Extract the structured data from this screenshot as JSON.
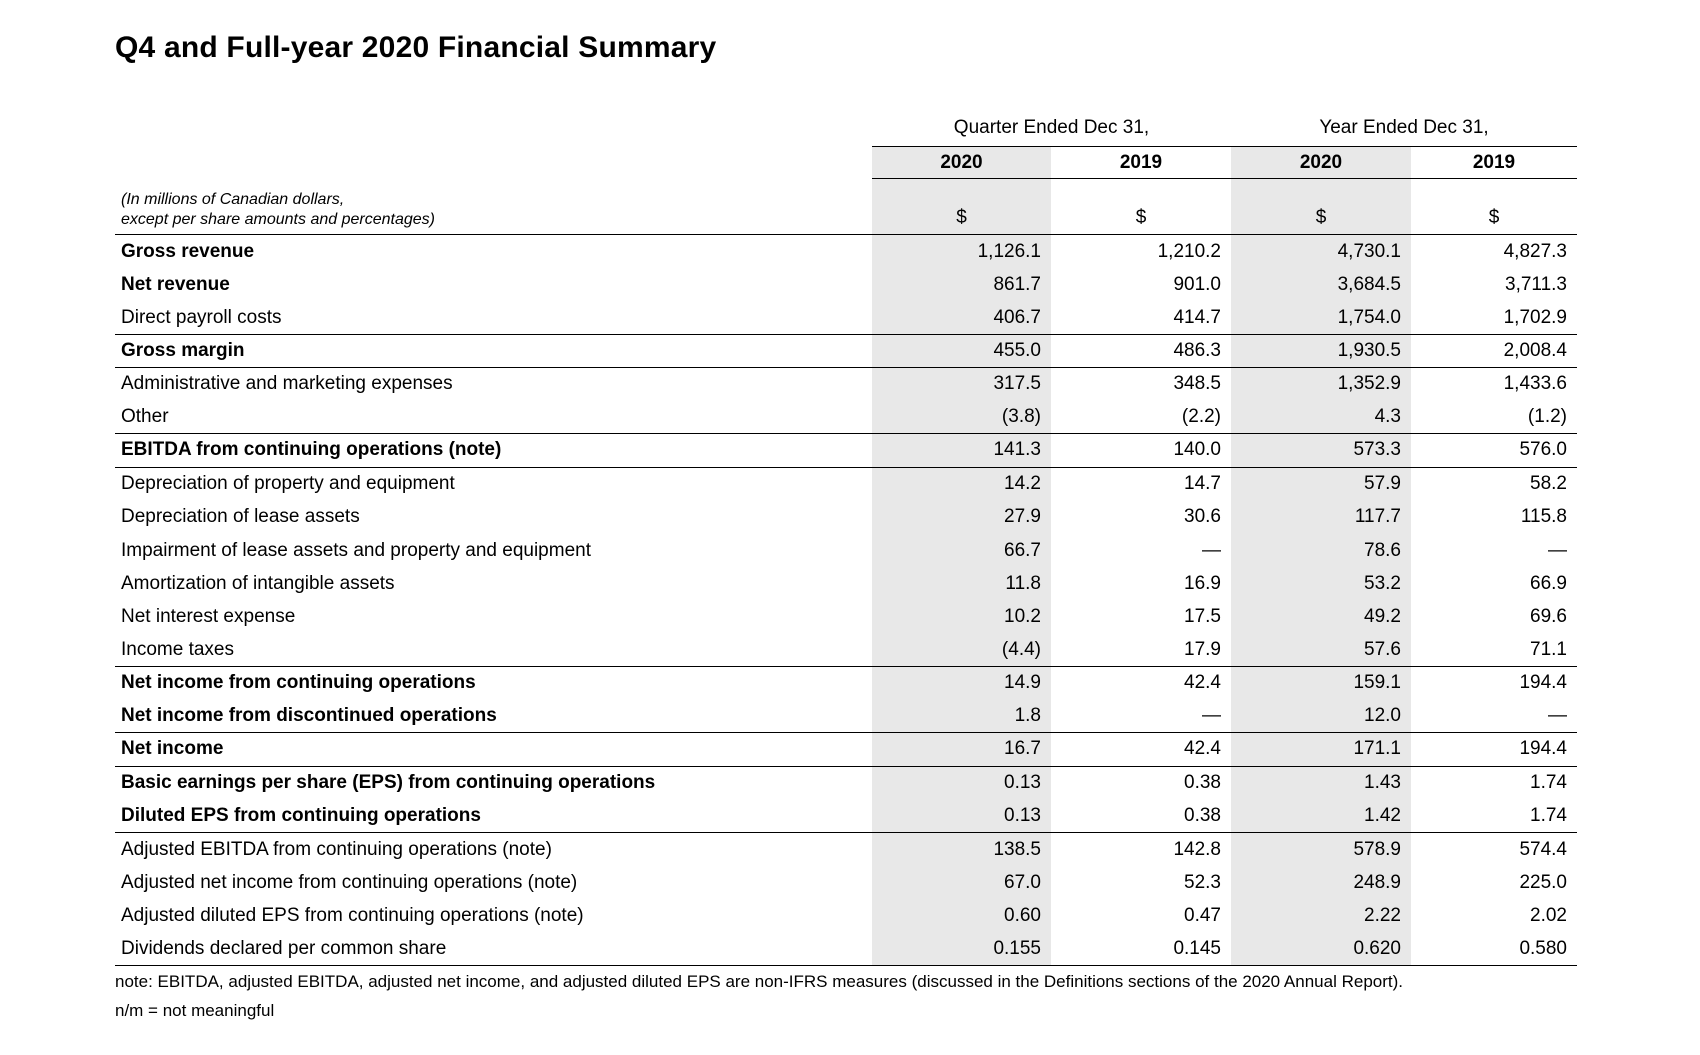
{
  "title": "Q4 and Full-year 2020 Financial Summary",
  "table": {
    "group_headers": [
      {
        "label": "Quarter Ended Dec 31,"
      },
      {
        "label": "Year Ended Dec 31,"
      }
    ],
    "year_headers": [
      "2020",
      "2019",
      "2020",
      "2019"
    ],
    "unit_note": [
      "(In millions of Canadian dollars,",
      "except per share amounts and percentages)"
    ],
    "currency_symbols": [
      "$",
      "$",
      "$",
      "$"
    ],
    "highlight_color": "#e8e8e8",
    "rule_color": "#000000",
    "rows": [
      {
        "label": "Gross revenue",
        "bold": true,
        "rule_below": false,
        "values": [
          "1,126.1",
          "1,210.2",
          "4,730.1",
          "4,827.3"
        ]
      },
      {
        "label": "Net revenue",
        "bold": true,
        "rule_below": false,
        "values": [
          "861.7",
          "901.0",
          "3,684.5",
          "3,711.3"
        ]
      },
      {
        "label": "Direct payroll costs",
        "bold": false,
        "rule_below": true,
        "values": [
          "406.7",
          "414.7",
          "1,754.0",
          "1,702.9"
        ]
      },
      {
        "label": "Gross margin",
        "bold": true,
        "rule_below": true,
        "values": [
          "455.0",
          "486.3",
          "1,930.5",
          "2,008.4"
        ]
      },
      {
        "label": "Administrative and marketing expenses",
        "bold": false,
        "rule_below": false,
        "values": [
          "317.5",
          "348.5",
          "1,352.9",
          "1,433.6"
        ]
      },
      {
        "label": "Other",
        "bold": false,
        "rule_below": true,
        "values": [
          "(3.8)",
          "(2.2)",
          "4.3",
          "(1.2)"
        ]
      },
      {
        "label": "EBITDA from continuing operations (note)",
        "bold": true,
        "rule_below": true,
        "values": [
          "141.3",
          "140.0",
          "573.3",
          "576.0"
        ]
      },
      {
        "label": "Depreciation of property and equipment",
        "bold": false,
        "rule_below": false,
        "values": [
          "14.2",
          "14.7",
          "57.9",
          "58.2"
        ]
      },
      {
        "label": "Depreciation of lease assets",
        "bold": false,
        "rule_below": false,
        "values": [
          "27.9",
          "30.6",
          "117.7",
          "115.8"
        ]
      },
      {
        "label": "Impairment of lease assets and property and equipment",
        "bold": false,
        "rule_below": false,
        "values": [
          "66.7",
          "—",
          "78.6",
          "—"
        ]
      },
      {
        "label": "Amortization of intangible assets",
        "bold": false,
        "rule_below": false,
        "values": [
          "11.8",
          "16.9",
          "53.2",
          "66.9"
        ]
      },
      {
        "label": "Net interest expense",
        "bold": false,
        "rule_below": false,
        "values": [
          "10.2",
          "17.5",
          "49.2",
          "69.6"
        ]
      },
      {
        "label": "Income taxes",
        "bold": false,
        "rule_below": true,
        "values": [
          "(4.4)",
          "17.9",
          "57.6",
          "71.1"
        ]
      },
      {
        "label": "Net income from continuing operations",
        "bold": true,
        "rule_below": false,
        "values": [
          "14.9",
          "42.4",
          "159.1",
          "194.4"
        ]
      },
      {
        "label": "Net income from discontinued operations",
        "bold": true,
        "rule_below": true,
        "values": [
          "1.8",
          "—",
          "12.0",
          "—"
        ]
      },
      {
        "label": "Net income",
        "bold": true,
        "rule_below": true,
        "values": [
          "16.7",
          "42.4",
          "171.1",
          "194.4"
        ]
      },
      {
        "label": "Basic earnings per share (EPS) from continuing operations",
        "bold": true,
        "rule_below": false,
        "values": [
          "0.13",
          "0.38",
          "1.43",
          "1.74"
        ]
      },
      {
        "label": "Diluted EPS from continuing operations",
        "bold": true,
        "rule_below": true,
        "values": [
          "0.13",
          "0.38",
          "1.42",
          "1.74"
        ]
      },
      {
        "label": "Adjusted EBITDA from continuing operations (note)",
        "bold": false,
        "rule_below": false,
        "values": [
          "138.5",
          "142.8",
          "578.9",
          "574.4"
        ]
      },
      {
        "label": "Adjusted net income from continuing operations (note)",
        "bold": false,
        "rule_below": false,
        "values": [
          "67.0",
          "52.3",
          "248.9",
          "225.0"
        ]
      },
      {
        "label": "Adjusted diluted EPS from continuing operations (note)",
        "bold": false,
        "rule_below": false,
        "values": [
          "0.60",
          "0.47",
          "2.22",
          "2.02"
        ]
      },
      {
        "label": "Dividends declared per common share",
        "bold": false,
        "rule_below": true,
        "values": [
          "0.155",
          "0.145",
          "0.620",
          "0.580"
        ]
      }
    ]
  },
  "footnotes": {
    "note": "note: EBITDA, adjusted EBITDA, adjusted net income, and adjusted diluted EPS are non-IFRS measures (discussed in the Definitions sections of the 2020 Annual Report).",
    "nm": "n/m = not meaningful"
  }
}
